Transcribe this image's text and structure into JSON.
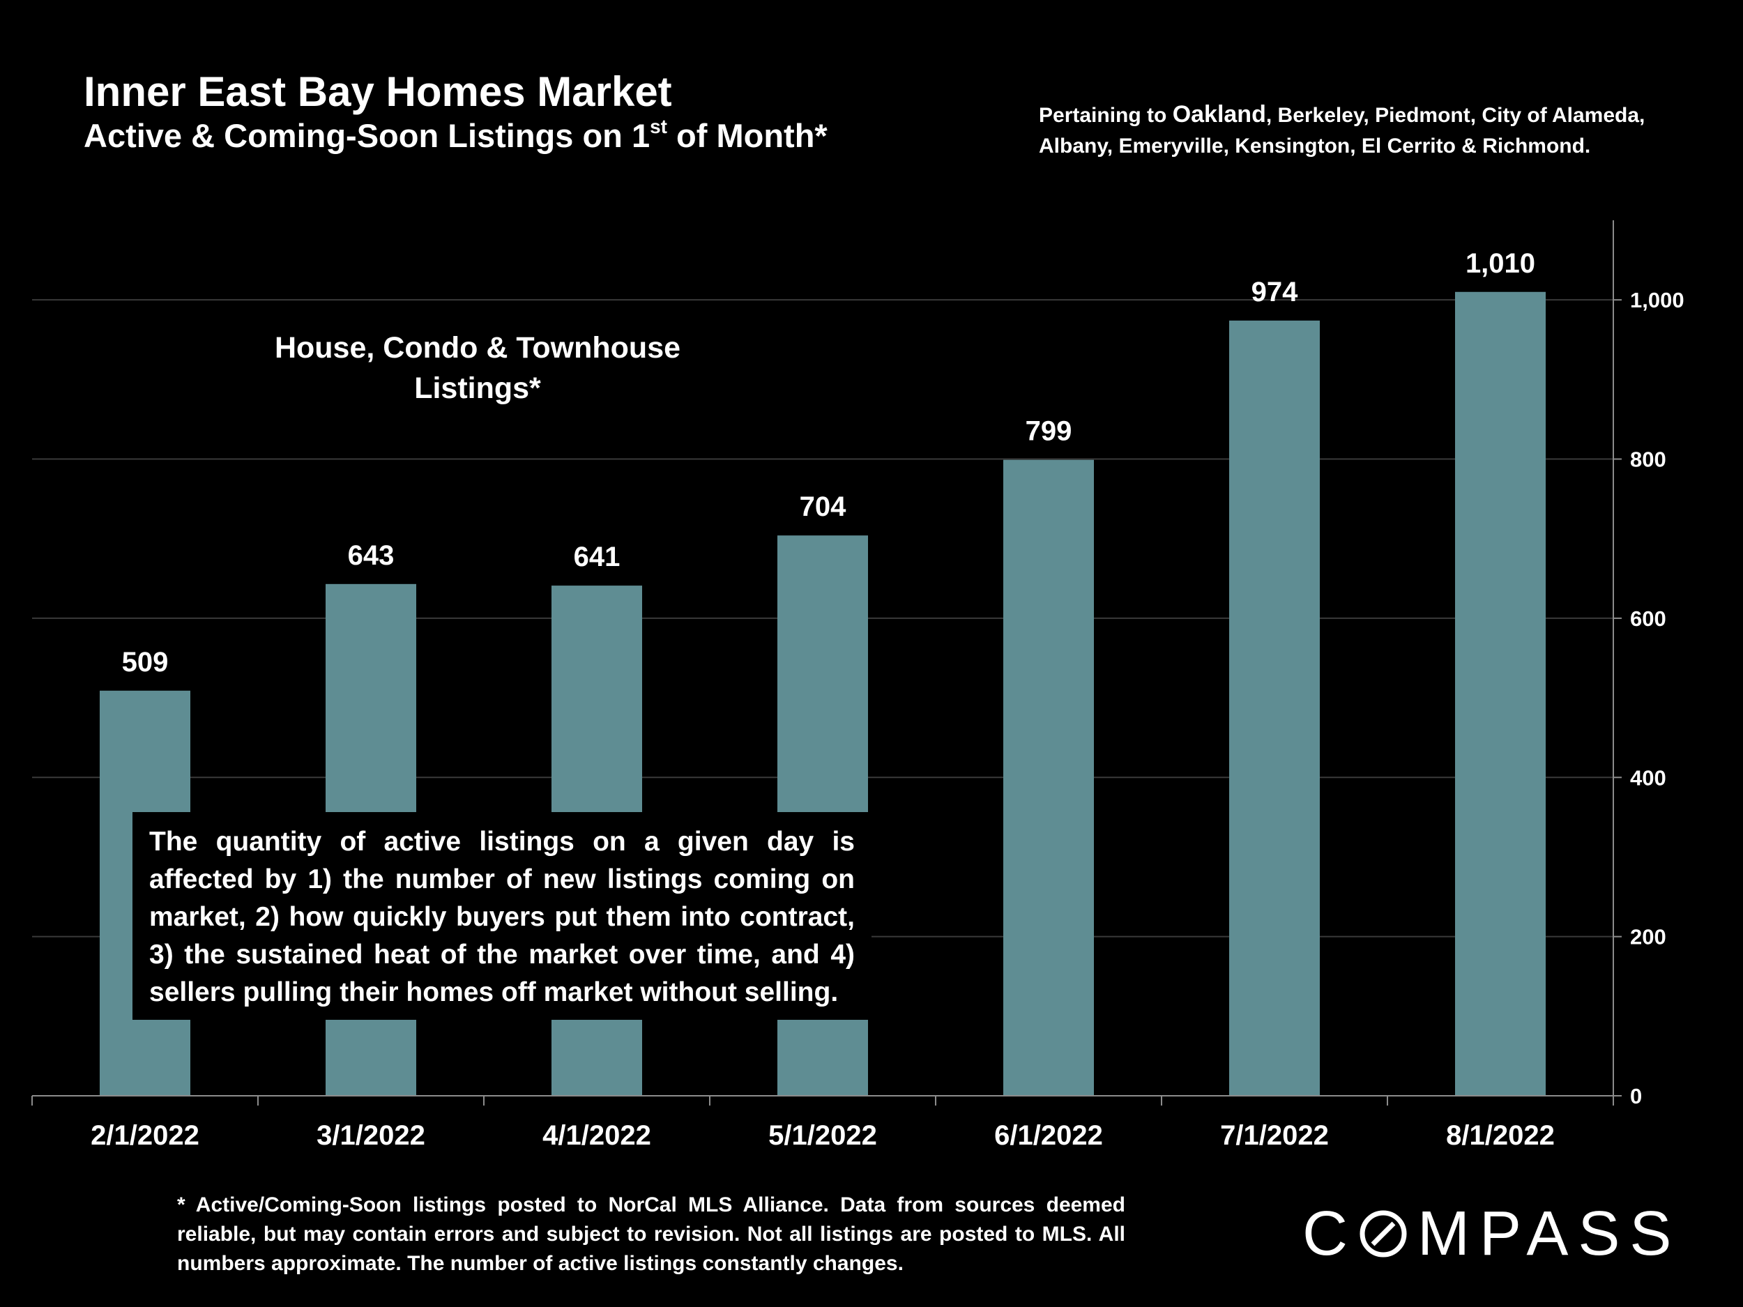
{
  "header": {
    "title": "Inner East Bay Homes Market",
    "subtitle_main": "Active & Coming-Soon Listings on 1",
    "subtitle_sup": "st",
    "subtitle_end": " of Month*",
    "areas_prefix": "Pertaining to ",
    "areas_highlight": "Oakland",
    "areas_rest": ", Berkeley, Piedmont, City of Alameda, Albany, Emeryville, Kensington, El Cerrito & Richmond."
  },
  "chart_data": {
    "type": "bar",
    "title": "House, Condo & Townhouse Listings*",
    "categories": [
      "2/1/2022",
      "3/1/2022",
      "4/1/2022",
      "5/1/2022",
      "6/1/2022",
      "7/1/2022",
      "8/1/2022"
    ],
    "values": [
      509,
      643,
      641,
      704,
      799,
      974,
      1010
    ],
    "data_labels": [
      "509",
      "643",
      "641",
      "704",
      "799",
      "974",
      "1,010"
    ],
    "y_ticks": [
      0,
      200,
      400,
      600,
      800,
      1000
    ],
    "y_tick_labels": [
      "0",
      "200",
      "400",
      "600",
      "800",
      "1,000"
    ],
    "ylim": [
      0,
      1100
    ],
    "y_axis_side": "right",
    "grid": true,
    "legend": "none",
    "bar_color": "#5f8d93",
    "grid_color": "#3a3a3a",
    "axis_color": "#8c8c8c"
  },
  "note": {
    "text": "The quantity of active listings on a given day is affected by 1) the number of new listings coming on market, 2) how quickly buyers put them into contract, 3) the sustained heat of the market over time, and 4) sellers pulling their homes off market without selling."
  },
  "footnote": {
    "text": "* Active/Coming-Soon listings posted to NorCal MLS Alliance.  Data from sources deemed reliable, but may contain errors and subject to revision.  Not all listings are posted to MLS. All numbers approximate. The number of active listings constantly changes."
  },
  "logo": {
    "text_before": "C",
    "text_after": "MPASS",
    "alt": "COMPASS"
  }
}
